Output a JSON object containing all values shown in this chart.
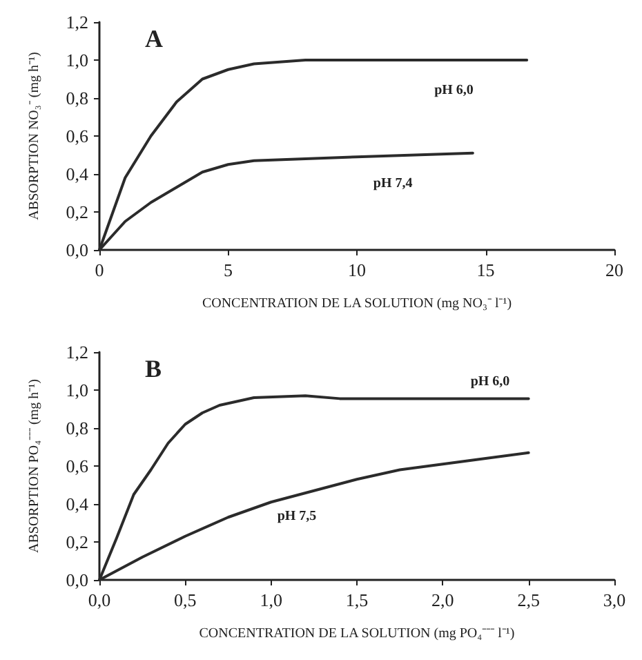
{
  "chart_data": [
    {
      "type": "line",
      "title": "A",
      "xlabel": "CONCENTRATION DE LA SOLUTION (mg NO₃⁻ l⁻¹)",
      "ylabel": "ABSORPTION NO₃⁻ (mg h⁻¹)",
      "xlim": [
        0,
        20
      ],
      "xticks": [
        0,
        5,
        10,
        15,
        20
      ],
      "ylim": [
        0,
        1.2
      ],
      "yticks": [
        {
          "value": 0,
          "label": "0,0"
        },
        {
          "value": 0.2,
          "label": "0,2"
        },
        {
          "value": 0.4,
          "label": "0,4"
        },
        {
          "value": 0.6,
          "label": "0,6"
        },
        {
          "value": 0.8,
          "label": "0,8"
        },
        {
          "value": 1.0,
          "label": "1,0"
        },
        {
          "value": 1.2,
          "label": "1,2"
        }
      ],
      "grid": false,
      "marker": "none",
      "line_style": "solid",
      "series": [
        {
          "name": "pH 6,0",
          "color": "#2b2b2b",
          "x": [
            0,
            1,
            2,
            3,
            4,
            5,
            6,
            8,
            12,
            16.6
          ],
          "values": [
            0,
            0.38,
            0.6,
            0.78,
            0.9,
            0.95,
            0.98,
            1.0,
            1.0,
            1.0
          ]
        },
        {
          "name": "pH 7,4",
          "color": "#2b2b2b",
          "x": [
            0,
            1,
            2,
            3,
            4,
            5,
            6,
            8,
            10,
            14.5
          ],
          "values": [
            0,
            0.15,
            0.25,
            0.33,
            0.41,
            0.45,
            0.47,
            0.48,
            0.49,
            0.51
          ]
        }
      ]
    },
    {
      "type": "line",
      "title": "B",
      "xlabel": "CONCENTRATION DE LA SOLUTION (mg PO₄⁻⁻⁻ l⁻¹)",
      "ylabel": "ABSORPTION PO₄⁻⁻⁻ (mg h⁻¹)",
      "xlim": [
        0,
        3
      ],
      "xticks": [
        {
          "value": 0,
          "label": "0,0"
        },
        {
          "value": 0.5,
          "label": "0,5"
        },
        {
          "value": 1.0,
          "label": "1,0"
        },
        {
          "value": 1.5,
          "label": "1,5"
        },
        {
          "value": 2.0,
          "label": "2,0"
        },
        {
          "value": 2.5,
          "label": "2,5"
        },
        {
          "value": 3.0,
          "label": "3,0"
        }
      ],
      "ylim": [
        0,
        1.2
      ],
      "yticks": [
        {
          "value": 0,
          "label": "0,0"
        },
        {
          "value": 0.2,
          "label": "0,2"
        },
        {
          "value": 0.4,
          "label": "0,4"
        },
        {
          "value": 0.6,
          "label": "0,6"
        },
        {
          "value": 0.8,
          "label": "0,8"
        },
        {
          "value": 1.0,
          "label": "1,0"
        },
        {
          "value": 1.2,
          "label": "1,2"
        }
      ],
      "grid": false,
      "marker": "none",
      "line_style": "solid",
      "series": [
        {
          "name": "pH 6,0",
          "color": "#2b2b2b",
          "x": [
            0,
            0.1,
            0.2,
            0.3,
            0.4,
            0.5,
            0.6,
            0.7,
            0.8,
            0.9,
            1.2,
            1.4,
            2.5
          ],
          "values": [
            0,
            0.22,
            0.45,
            0.58,
            0.72,
            0.82,
            0.88,
            0.92,
            0.94,
            0.96,
            0.97,
            0.955,
            0.955
          ]
        },
        {
          "name": "pH 7,5",
          "color": "#2b2b2b",
          "x": [
            0,
            0.25,
            0.5,
            0.75,
            1.0,
            1.25,
            1.5,
            1.75,
            2.0,
            2.25,
            2.5
          ],
          "values": [
            0,
            0.12,
            0.23,
            0.33,
            0.41,
            0.47,
            0.53,
            0.58,
            0.61,
            0.64,
            0.67
          ]
        }
      ]
    }
  ]
}
